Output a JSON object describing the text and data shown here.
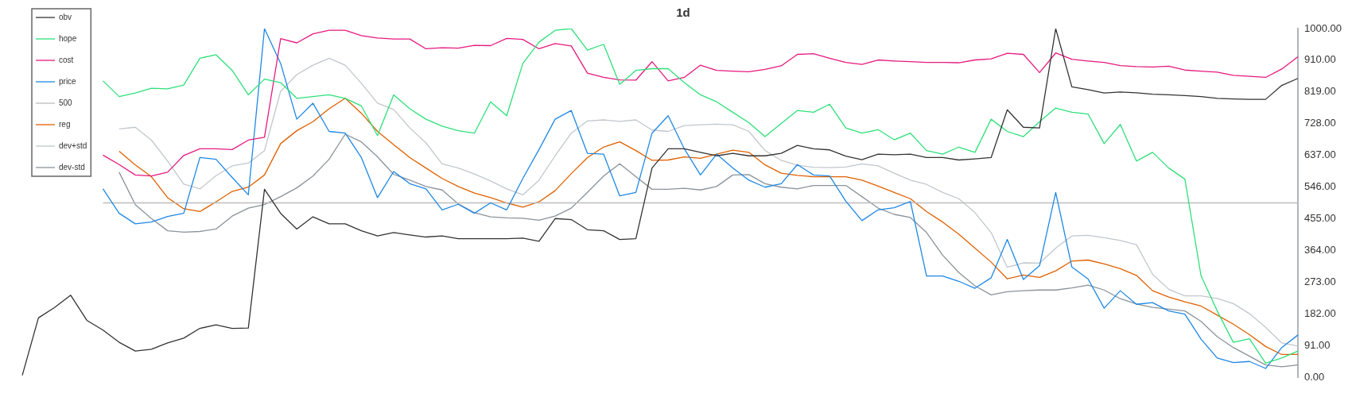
{
  "chart_data": {
    "type": "line",
    "title": "1d",
    "categories": [
      null,
      null,
      null,
      null,
      null,
      null,
      null,
      null,
      null,
      null,
      null,
      null,
      null,
      null,
      null,
      null,
      null,
      null,
      null,
      null,
      null,
      null,
      null,
      null,
      null,
      null,
      null,
      null,
      null,
      null,
      null,
      null,
      null,
      null,
      null,
      null,
      null,
      null,
      null,
      null,
      null,
      null,
      null,
      null,
      null,
      null,
      null,
      null,
      null,
      null,
      null,
      null,
      null,
      null,
      null,
      null,
      null,
      null,
      null,
      null,
      null,
      null,
      null,
      null,
      null,
      null,
      null,
      null,
      null,
      null,
      null,
      null,
      null,
      null,
      null,
      null,
      null,
      null,
      null,
      null
    ],
    "series": [
      {
        "name": "obv",
        "color": "#333333",
        "values": [
          5,
          170,
          200,
          235,
          163,
          135,
          100,
          75,
          80,
          98,
          112,
          140,
          150,
          140,
          141,
          539,
          470,
          425,
          460,
          440,
          440,
          420,
          405,
          415,
          408,
          402,
          405,
          397,
          397,
          397,
          397,
          399,
          390,
          455,
          452,
          423,
          420,
          395,
          397,
          600,
          655,
          655,
          645,
          635,
          642,
          635,
          635,
          642,
          665,
          655,
          652,
          634,
          624,
          640,
          638,
          640,
          630,
          630,
          623,
          626,
          630,
          767,
          717,
          715,
          1000,
          833,
          825,
          815,
          818,
          816,
          812,
          810,
          808,
          805,
          800,
          798,
          797,
          797,
          837,
          857
        ]
      },
      {
        "name": "hope",
        "color": "#2ee07a",
        "values": [
          null,
          null,
          null,
          null,
          null,
          850,
          805,
          815,
          829,
          827,
          838,
          915,
          925,
          880,
          810,
          855,
          845,
          800,
          805,
          810,
          800,
          778,
          693,
          810,
          770,
          740,
          720,
          707,
          700,
          790,
          750,
          900,
          961,
          995,
          1000,
          938,
          955,
          840,
          880,
          885,
          885,
          845,
          810,
          790,
          760,
          730,
          690,
          728,
          765,
          760,
          783,
          715,
          700,
          710,
          681,
          700,
          650,
          640,
          660,
          645,
          740,
          705,
          690,
          733,
          772,
          760,
          755,
          670,
          725,
          620,
          645,
          600,
          568,
          291,
          190,
          100,
          110,
          40,
          55,
          75
        ]
      },
      {
        "name": "cost",
        "color": "#e6197f",
        "values": [
          null,
          null,
          null,
          null,
          null,
          637,
          610,
          580,
          577,
          588,
          636,
          655,
          655,
          653,
          680,
          688,
          971,
          959,
          985,
          995,
          995,
          980,
          973,
          970,
          970,
          942,
          945,
          944,
          952,
          951,
          972,
          969,
          942,
          957,
          950,
          872,
          860,
          853,
          852,
          905,
          850,
          860,
          895,
          880,
          878,
          876,
          883,
          893,
          926,
          928,
          915,
          903,
          897,
          910,
          907,
          905,
          903,
          903,
          902,
          910,
          913,
          929,
          926,
          874,
          930,
          912,
          907,
          903,
          894,
          891,
          890,
          892,
          881,
          878,
          875,
          866,
          863,
          860,
          884,
          919
        ]
      },
      {
        "name": "price",
        "color": "#1e88e5",
        "values": [
          null,
          null,
          null,
          null,
          null,
          540,
          470,
          440,
          445,
          461,
          470,
          630,
          625,
          573,
          523,
          1000,
          900,
          740,
          786,
          705,
          700,
          630,
          515,
          590,
          555,
          540,
          480,
          496,
          470,
          500,
          480,
          570,
          653,
          740,
          765,
          642,
          640,
          520,
          530,
          700,
          750,
          655,
          580,
          640,
          600,
          565,
          545,
          555,
          610,
          580,
          577,
          505,
          449,
          480,
          486,
          504,
          290,
          290,
          275,
          255,
          285,
          395,
          280,
          320,
          530,
          316,
          282,
          198,
          248,
          209,
          214,
          190,
          181,
          109,
          55,
          42,
          45,
          25,
          85,
          121
        ]
      },
      {
        "name": "500",
        "color": "#bdbdbd",
        "values": [
          null,
          null,
          null,
          null,
          null,
          500,
          500,
          500,
          500,
          500,
          500,
          500,
          500,
          500,
          500,
          500,
          500,
          500,
          500,
          500,
          500,
          500,
          500,
          500,
          500,
          500,
          500,
          500,
          500,
          500,
          500,
          500,
          500,
          500,
          500,
          500,
          500,
          500,
          500,
          500,
          500,
          500,
          500,
          500,
          500,
          500,
          500,
          500,
          500,
          500,
          500,
          500,
          500,
          500,
          500,
          500,
          500,
          500,
          500,
          500,
          500,
          500,
          500,
          500,
          500,
          500,
          500,
          500,
          500,
          500,
          500,
          500,
          500,
          500,
          500,
          500,
          500,
          500,
          500,
          500
        ]
      },
      {
        "name": "reg",
        "color": "#e06000",
        "values": [
          null,
          null,
          null,
          null,
          null,
          null,
          648,
          609,
          575,
          515,
          483,
          475,
          503,
          533,
          545,
          580,
          670,
          707,
          733,
          770,
          800,
          757,
          705,
          667,
          630,
          600,
          570,
          547,
          528,
          515,
          500,
          488,
          503,
          535,
          584,
          630,
          660,
          675,
          650,
          622,
          623,
          632,
          628,
          640,
          651,
          645,
          609,
          585,
          579,
          575,
          575,
          575,
          565,
          548,
          530,
          512,
          475,
          445,
          410,
          370,
          330,
          282,
          293,
          286,
          305,
          333,
          336,
          325,
          311,
          292,
          248,
          230,
          216,
          204,
          178,
          152,
          122,
          88,
          65,
          65
        ]
      },
      {
        "name": "dev+std",
        "color": "#c2c7cc",
        "values": [
          null,
          null,
          null,
          null,
          null,
          null,
          712,
          717,
          680,
          620,
          554,
          540,
          578,
          606,
          614,
          650,
          820,
          868,
          895,
          915,
          895,
          843,
          786,
          768,
          715,
          672,
          612,
          600,
          583,
          563,
          540,
          523,
          565,
          635,
          700,
          735,
          738,
          734,
          738,
          709,
          705,
          722,
          724,
          726,
          724,
          705,
          650,
          622,
          608,
          602,
          601,
          603,
          612,
          606,
          585,
          565,
          553,
          530,
          512,
          472,
          415,
          315,
          328,
          327,
          370,
          405,
          407,
          400,
          392,
          380,
          295,
          252,
          233,
          233,
          226,
          211,
          182,
          143,
          98,
          89
        ]
      },
      {
        "name": "dev-std",
        "color": "#8a939b",
        "values": [
          null,
          null,
          null,
          null,
          null,
          null,
          588,
          495,
          455,
          420,
          416,
          418,
          425,
          462,
          485,
          495,
          518,
          543,
          577,
          625,
          697,
          675,
          632,
          582,
          565,
          547,
          537,
          497,
          472,
          460,
          457,
          456,
          450,
          462,
          485,
          530,
          577,
          612,
          575,
          539,
          539,
          542,
          537,
          547,
          580,
          581,
          555,
          545,
          540,
          550,
          550,
          550,
          518,
          485,
          467,
          458,
          415,
          350,
          300,
          262,
          236,
          245,
          248,
          250,
          250,
          256,
          264,
          250,
          225,
          210,
          200,
          195,
          190,
          160,
          116,
          85,
          60,
          35,
          30,
          35
        ]
      }
    ],
    "ylim": [
      0,
      1000
    ],
    "yticks": [
      {
        "value": 0,
        "label": "0.00"
      },
      {
        "value": 91,
        "label": "91.00"
      },
      {
        "value": 182,
        "label": "182.00"
      },
      {
        "value": 273,
        "label": "273.00"
      },
      {
        "value": 364,
        "label": "364.00"
      },
      {
        "value": 455,
        "label": "455.00"
      },
      {
        "value": 546,
        "label": "546.00"
      },
      {
        "value": 637,
        "label": "637.00"
      },
      {
        "value": 728,
        "label": "728.00"
      },
      {
        "value": 819,
        "label": "819.00"
      },
      {
        "value": 910,
        "label": "910.00"
      },
      {
        "value": 1000,
        "label": "1000.00"
      }
    ],
    "tick_labels": "y",
    "grid": false,
    "legend": "top left",
    "marker": "none",
    "line_style": "solid"
  }
}
